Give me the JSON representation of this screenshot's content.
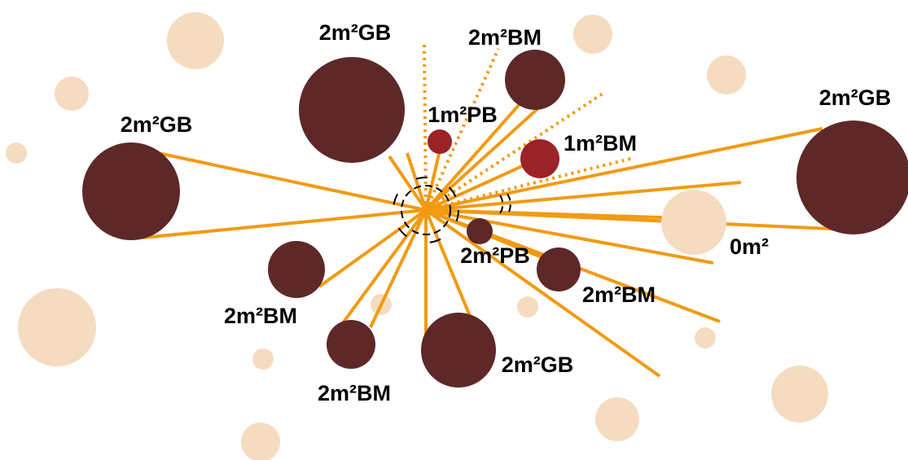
{
  "nodes": [
    {
      "label": "2m²GB"
    },
    {
      "label": "2m²BM"
    },
    {
      "label": "1m²PB"
    },
    {
      "label": "1m²BM"
    },
    {
      "label": "2m²GB"
    },
    {
      "label": "0m²"
    },
    {
      "label": "2m²BM"
    },
    {
      "label": "2m²PB"
    },
    {
      "label": "2m²GB"
    },
    {
      "label": "2m²BM"
    },
    {
      "label": "2m²BM"
    },
    {
      "label": "2m²GB"
    }
  ]
}
